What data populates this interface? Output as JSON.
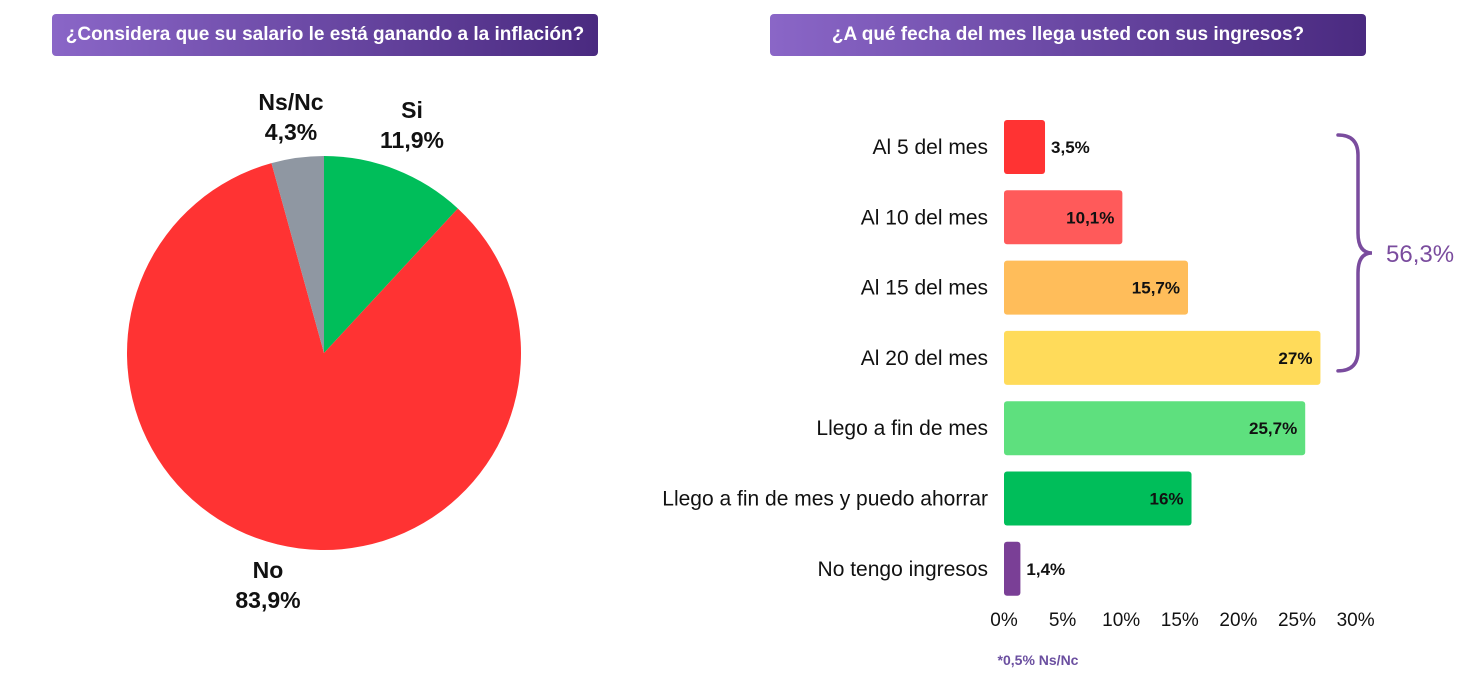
{
  "colors": {
    "banner_start": "#8a66c7",
    "banner_end": "#4a2a80",
    "bracket": "#7a4c9e",
    "note": "#6b4fa0"
  },
  "chart_data": [
    {
      "type": "pie",
      "title": "¿Considera que su salario le está ganando a la inflación?",
      "slices": [
        {
          "label": "Si",
          "value": 11.9,
          "value_label": "11,9%",
          "color": "#00be5a"
        },
        {
          "label": "No",
          "value": 83.9,
          "value_label": "83,9%",
          "color": "#ff3333"
        },
        {
          "label": "Ns/Nc",
          "value": 4.3,
          "value_label": "4,3%",
          "color": "#8f97a2"
        }
      ]
    },
    {
      "type": "bar",
      "orientation": "horizontal",
      "title": "¿A qué fecha del mes llega usted con sus ingresos?",
      "categories": [
        "Al 5 del mes",
        "Al 10 del mes",
        "Al 15 del mes",
        "Al 20 del mes",
        "Llego a fin de mes",
        "Llego a fin de mes y puedo ahorrar",
        "No tengo ingresos"
      ],
      "values": [
        3.5,
        10.1,
        15.7,
        27,
        25.7,
        16,
        1.4
      ],
      "value_labels": [
        "3,5%",
        "10,1%",
        "15,7%",
        "27%",
        "25,7%",
        "16%",
        "1,4%"
      ],
      "colors": [
        "#ff3333",
        "#ff5a5a",
        "#ffbd5a",
        "#ffdb5a",
        "#5ee07e",
        "#00be5a",
        "#7a3f96"
      ],
      "xlim": [
        0,
        30
      ],
      "ticks": [
        0,
        5,
        10,
        15,
        20,
        25,
        30
      ],
      "tick_labels": [
        "0%",
        "5%",
        "10%",
        "15%",
        "20%",
        "25%",
        "30%"
      ],
      "bracket": {
        "label": "56,3%",
        "spans": [
          "Al 5 del mes",
          "Al 10 del mes",
          "Al 15 del mes",
          "Al 20 del mes"
        ]
      },
      "footnote": "*0,5% Ns/Nc",
      "grid": false
    }
  ]
}
